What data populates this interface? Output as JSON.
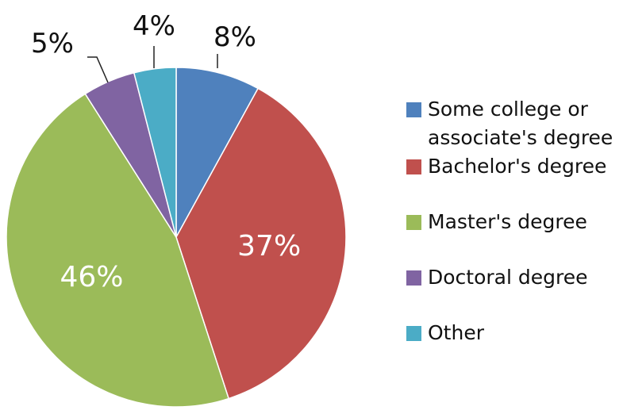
{
  "chart_data": {
    "type": "pie",
    "title": "",
    "categories": [
      "Some college or\nassociate's degree",
      "Bachelor's degree",
      "Master's degree",
      "Doctoral degree",
      "Other"
    ],
    "values": [
      8,
      37,
      46,
      5,
      4
    ],
    "labels": [
      "8%",
      "37%",
      "46%",
      "5%",
      "4%"
    ],
    "colors": [
      "#4f81bd",
      "#c0504d",
      "#9bbb59",
      "#8064a2",
      "#4bacc6"
    ],
    "legend_position": "right"
  }
}
